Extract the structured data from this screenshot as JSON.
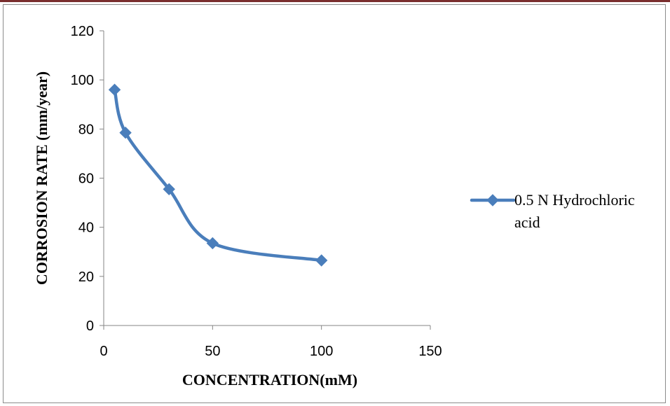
{
  "chart_data": {
    "type": "scatter",
    "title": "",
    "xlabel": "CONCENTRATION(mM)",
    "ylabel": "CORROSION RATE (mm/year)",
    "xlim": [
      0,
      150
    ],
    "ylim": [
      0,
      120
    ],
    "xticks": [
      0,
      50,
      100,
      150
    ],
    "yticks": [
      0,
      20,
      40,
      60,
      80,
      100,
      120
    ],
    "grid": false,
    "smooth_lines": true,
    "marker": "diamond",
    "legend_position": "right",
    "series": [
      {
        "name": "0.5 N Hydrochloric acid",
        "color": "#4a7ebb",
        "points": [
          {
            "x": 5,
            "y": 96
          },
          {
            "x": 10,
            "y": 78.5
          },
          {
            "x": 30,
            "y": 55.5
          },
          {
            "x": 50,
            "y": 33.5
          },
          {
            "x": 100,
            "y": 26.5
          }
        ]
      }
    ]
  }
}
